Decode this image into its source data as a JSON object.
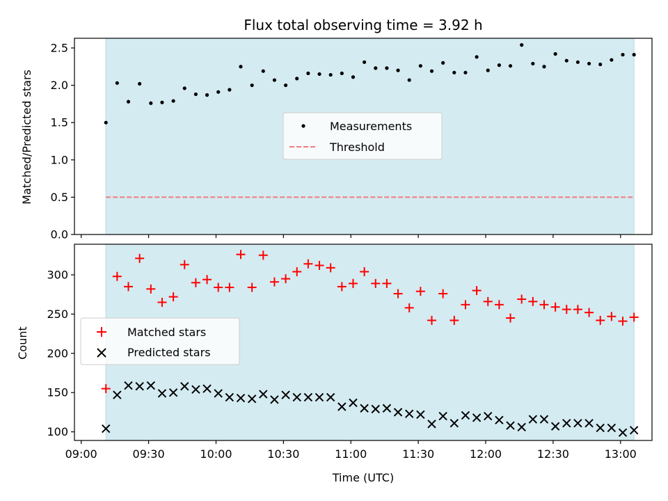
{
  "chart_data": {
    "title": "Flux total observing time = 3.92 h",
    "xlabel": "Time (UTC)",
    "x_ticks": [
      "09:00",
      "09:30",
      "10:00",
      "10:30",
      "11:00",
      "11:30",
      "12:00",
      "12:30",
      "13:00"
    ],
    "x_range": [
      "08:57",
      "13:14"
    ],
    "observing_window": [
      "09:11",
      "13:06"
    ],
    "times": [
      "09:11",
      "09:16",
      "09:21",
      "09:26",
      "09:31",
      "09:36",
      "09:41",
      "09:46",
      "09:51",
      "09:56",
      "10:01",
      "10:06",
      "10:11",
      "10:16",
      "10:21",
      "10:26",
      "10:31",
      "10:36",
      "10:41",
      "10:46",
      "10:51",
      "10:56",
      "11:01",
      "11:06",
      "11:11",
      "11:16",
      "11:21",
      "11:26",
      "11:31",
      "11:36",
      "11:41",
      "11:46",
      "11:51",
      "11:56",
      "12:01",
      "12:06",
      "12:11",
      "12:16",
      "12:21",
      "12:26",
      "12:31",
      "12:36",
      "12:41",
      "12:46",
      "12:51",
      "12:56",
      "13:01",
      "13:06"
    ],
    "top": {
      "type": "scatter",
      "ylabel": "Matched/Predicted stars",
      "ylim": [
        0,
        2.63
      ],
      "y_ticks": [
        "0.0",
        "0.5",
        "1.0",
        "1.5",
        "2.0",
        "2.5"
      ],
      "threshold": 0.5,
      "legend": {
        "placement": "center",
        "entries": [
          "Measurements",
          "Threshold"
        ]
      },
      "series": [
        {
          "name": "Measurements",
          "values": [
            1.5,
            2.03,
            1.78,
            2.02,
            1.76,
            1.77,
            1.79,
            1.96,
            1.88,
            1.87,
            1.91,
            1.94,
            2.25,
            2.0,
            2.19,
            2.07,
            2.0,
            2.09,
            2.16,
            2.15,
            2.14,
            2.16,
            2.11,
            2.31,
            2.23,
            2.23,
            2.2,
            2.07,
            2.26,
            2.19,
            2.3,
            2.17,
            2.17,
            2.38,
            2.2,
            2.27,
            2.26,
            2.54,
            2.29,
            2.25,
            2.42,
            2.33,
            2.31,
            2.29,
            2.28,
            2.34,
            2.41,
            2.41
          ]
        },
        {
          "name": "Threshold",
          "values": [
            0.5
          ]
        }
      ]
    },
    "bottom": {
      "type": "scatter",
      "ylabel": "Count",
      "ylim": [
        89,
        339
      ],
      "y_ticks": [
        "100",
        "150",
        "200",
        "250",
        "300"
      ],
      "legend": {
        "placement": "center-left",
        "entries": [
          "Matched stars",
          "Predicted stars"
        ]
      },
      "series": [
        {
          "name": "Matched stars",
          "values": [
            155,
            298,
            285,
            321,
            282,
            265,
            272,
            313,
            290,
            294,
            284,
            284,
            326,
            284,
            325,
            291,
            295,
            304,
            314,
            312,
            309,
            285,
            289,
            304,
            289,
            289,
            276,
            258,
            279,
            242,
            276,
            242,
            262,
            280,
            266,
            262,
            245,
            269,
            266,
            262,
            259,
            256,
            256,
            252,
            242,
            247,
            241,
            246
          ]
        },
        {
          "name": "Predicted stars",
          "values": [
            104,
            147,
            159,
            158,
            159,
            149,
            150,
            158,
            154,
            155,
            149,
            144,
            143,
            142,
            148,
            141,
            147,
            144,
            144,
            144,
            144,
            132,
            137,
            130,
            129,
            130,
            125,
            123,
            122,
            110,
            120,
            111,
            121,
            118,
            120,
            115,
            108,
            106,
            116,
            116,
            107,
            111,
            111,
            111,
            105,
            105,
            99,
            102
          ]
        }
      ]
    },
    "colors": {
      "window": "#d4ebf1",
      "window_edge": "#b9d9e3",
      "measurements": "#000000",
      "threshold": "#f07c7c",
      "matched": "#ff0000",
      "predicted": "#000000"
    }
  }
}
